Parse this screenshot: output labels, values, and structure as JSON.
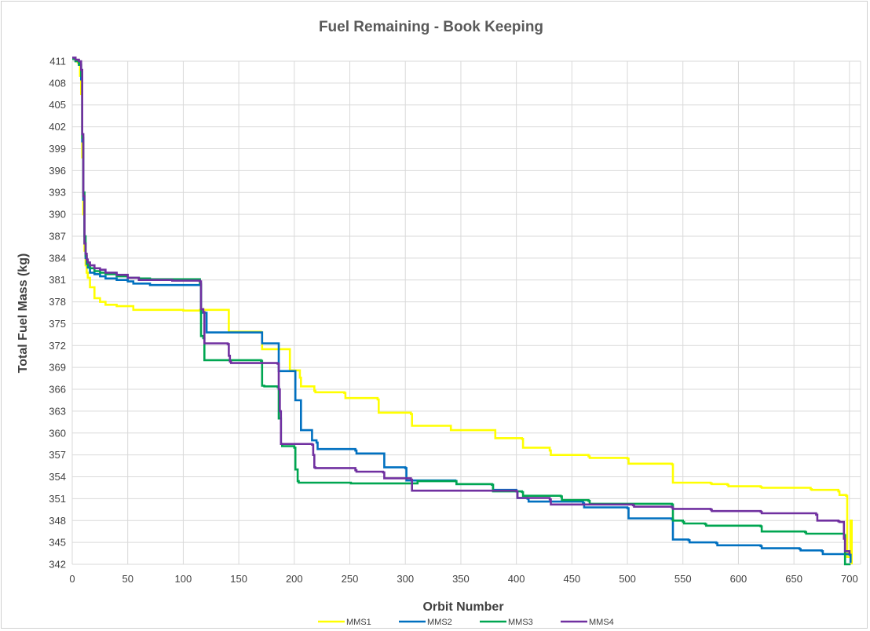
{
  "chart_data": {
    "type": "line",
    "title": "Fuel Remaining - Book Keeping",
    "xlabel": "Orbit Number",
    "ylabel": "Total Fuel Mass (kg)",
    "xlim": [
      0,
      710
    ],
    "ylim": [
      342,
      411
    ],
    "xticks": [
      0,
      50,
      100,
      150,
      200,
      250,
      300,
      350,
      400,
      450,
      500,
      550,
      600,
      650,
      700
    ],
    "yticks": [
      411,
      408,
      405,
      402,
      399,
      396,
      393,
      390,
      387,
      384,
      381,
      378,
      375,
      372,
      369,
      366,
      363,
      360,
      357,
      354,
      351,
      348,
      345,
      342
    ],
    "grid": true,
    "legend_position": "bottom",
    "series": [
      {
        "name": "MMS1",
        "color": "#FFFF00",
        "x": [
          0,
          3,
          5,
          7,
          8,
          9,
          10,
          11,
          12,
          13,
          14,
          16,
          20,
          25,
          30,
          40,
          55,
          100,
          115,
          140,
          141,
          170,
          171,
          195,
          196,
          205,
          206,
          218,
          219,
          245,
          246,
          275,
          276,
          305,
          306,
          340,
          341,
          380,
          381,
          405,
          406,
          430,
          431,
          465,
          466,
          500,
          501,
          540,
          541,
          575,
          576,
          590,
          591,
          620,
          621,
          665,
          666,
          690,
          691,
          697,
          698,
          701,
          702
        ],
        "y": [
          411.3,
          411.0,
          410.8,
          409.0,
          406.5,
          397.8,
          390.0,
          385.0,
          383.0,
          382.0,
          381.3,
          380.0,
          378.5,
          378.0,
          377.6,
          377.4,
          376.9,
          376.8,
          376.9,
          376.9,
          373.9,
          373.8,
          371.5,
          371.5,
          368.6,
          367.6,
          366.4,
          365.8,
          365.6,
          365.5,
          364.8,
          364.6,
          362.8,
          362.6,
          361.0,
          361.0,
          360.4,
          360.4,
          359.3,
          359.2,
          358.0,
          357.6,
          357.0,
          356.8,
          356.6,
          356.5,
          355.8,
          355.7,
          353.2,
          353.1,
          353.0,
          352.9,
          352.7,
          352.6,
          352.5,
          352.3,
          352.2,
          352.0,
          351.5,
          351.4,
          343.0,
          348.0,
          342.0
        ]
      },
      {
        "name": "MMS2",
        "color": "#0070C0",
        "x": [
          0,
          3,
          6,
          8,
          9,
          10,
          11,
          12,
          13,
          14,
          16,
          20,
          25,
          30,
          40,
          50,
          55,
          70,
          90,
          115,
          116,
          120,
          121,
          170,
          171,
          185,
          186,
          200,
          201,
          205,
          206,
          215,
          216,
          220,
          221,
          255,
          256,
          280,
          281,
          300,
          301,
          345,
          346,
          378,
          379,
          400,
          401,
          410,
          411,
          460,
          461,
          500,
          501,
          540,
          541,
          555,
          556,
          580,
          581,
          620,
          621,
          655,
          656,
          675,
          676,
          700,
          701
        ],
        "y": [
          411.3,
          411.0,
          410.5,
          408.5,
          400.0,
          392.0,
          386.0,
          384.0,
          383.2,
          382.7,
          382.0,
          381.8,
          381.5,
          381.2,
          381.0,
          380.8,
          380.5,
          380.3,
          380.3,
          380.3,
          376.5,
          376.5,
          373.8,
          373.8,
          372.3,
          372.3,
          368.5,
          368.5,
          364.5,
          364.5,
          360.4,
          360.4,
          359.0,
          358.7,
          357.8,
          357.6,
          357.2,
          357.2,
          355.3,
          355.2,
          353.5,
          353.4,
          353.0,
          352.9,
          352.2,
          352.0,
          351.1,
          351.0,
          350.6,
          350.4,
          349.8,
          349.7,
          348.3,
          348.2,
          345.4,
          345.3,
          345.0,
          344.9,
          344.6,
          344.5,
          344.2,
          344.1,
          343.9,
          343.8,
          343.4,
          343.3,
          342.2
        ]
      },
      {
        "name": "MMS3",
        "color": "#00A651",
        "x": [
          0,
          3,
          6,
          8,
          9,
          10,
          11,
          12,
          13,
          14,
          16,
          20,
          25,
          30,
          40,
          50,
          60,
          70,
          90,
          115,
          116,
          118,
          119,
          170,
          171,
          172,
          173,
          185,
          186,
          188,
          189,
          200,
          201,
          203,
          204,
          250,
          251,
          310,
          311,
          345,
          346,
          378,
          379,
          405,
          406,
          440,
          441,
          465,
          466,
          540,
          541,
          550,
          551,
          570,
          571,
          620,
          621,
          660,
          661,
          695,
          696,
          701
        ],
        "y": [
          411.3,
          411.0,
          410.5,
          409.0,
          400.5,
          393.0,
          387.0,
          384.3,
          383.5,
          383.0,
          382.6,
          382.2,
          382.0,
          381.8,
          381.5,
          381.3,
          381.2,
          381.1,
          381.1,
          380.5,
          373.3,
          373.0,
          370.0,
          369.9,
          366.5,
          366.5,
          366.4,
          366.3,
          362.0,
          358.5,
          358.2,
          358.0,
          355.0,
          353.4,
          353.2,
          353.2,
          353.1,
          353.1,
          353.4,
          353.4,
          353.0,
          352.9,
          352.0,
          351.9,
          351.4,
          351.3,
          350.8,
          350.7,
          350.3,
          350.2,
          348.0,
          347.8,
          347.6,
          347.5,
          347.3,
          347.2,
          346.5,
          346.4,
          346.2,
          346.0,
          342.0,
          342.0
        ]
      },
      {
        "name": "MMS4",
        "color": "#7030A0",
        "x": [
          0,
          3,
          6,
          8,
          9,
          10,
          11,
          12,
          13,
          14,
          16,
          20,
          25,
          30,
          40,
          50,
          60,
          90,
          115,
          116,
          118,
          119,
          140,
          141,
          142,
          143,
          185,
          186,
          187,
          188,
          216,
          217,
          218,
          219,
          255,
          256,
          280,
          281,
          305,
          306,
          400,
          401,
          430,
          431,
          505,
          506,
          540,
          541,
          575,
          576,
          620,
          621,
          670,
          671,
          690,
          691,
          695,
          696,
          700,
          701
        ],
        "y": [
          411.5,
          411.2,
          411.0,
          409.8,
          401.0,
          392.5,
          386.0,
          384.6,
          383.8,
          383.4,
          383.0,
          382.6,
          382.4,
          382.0,
          381.7,
          381.3,
          381.0,
          380.9,
          380.8,
          377.0,
          376.6,
          372.3,
          372.2,
          370.6,
          369.8,
          369.6,
          369.5,
          366.0,
          363.0,
          358.5,
          358.4,
          357.0,
          355.3,
          355.2,
          354.9,
          354.7,
          354.6,
          353.8,
          353.6,
          352.1,
          352.0,
          351.1,
          350.9,
          350.2,
          350.1,
          349.9,
          349.8,
          349.6,
          349.5,
          349.3,
          349.2,
          349.0,
          348.8,
          348.0,
          347.9,
          347.8,
          345.5,
          343.8,
          343.5,
          343.5
        ]
      }
    ]
  }
}
